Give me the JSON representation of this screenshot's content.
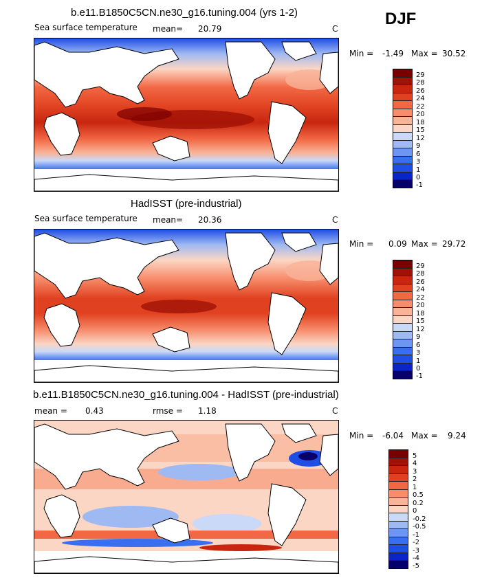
{
  "season": "DJF",
  "colors": {
    "sst_scale": [
      "#08006a",
      "#0c23c8",
      "#1f4ee6",
      "#3a6ef0",
      "#6d95f2",
      "#9fb9f3",
      "#c9d9f7",
      "#f2f2f2",
      "#fbd6c4",
      "#f9b398",
      "#f78d6c",
      "#f26844",
      "#e04221",
      "#c8260f",
      "#a01205",
      "#7a0000"
    ],
    "diff_scale": [
      "#08006a",
      "#0c23c8",
      "#1f4ee6",
      "#3a6ef0",
      "#6d95f2",
      "#9fb9f3",
      "#c9d9f7",
      "#f2f2f2",
      "#fbd6c4",
      "#f9b398",
      "#f78d6c",
      "#f26844",
      "#e04221",
      "#c8260f",
      "#a01205",
      "#7a0000"
    ]
  },
  "panels": [
    {
      "title": "b.e11.B1850C5CN.ne30_g16.tuning.004 (yrs 1-2)",
      "variable": "Sea surface temperature",
      "mean_label": "mean=",
      "mean_value": "20.79",
      "units": "C",
      "min_label": "Min =",
      "min_value": "-1.49",
      "max_label": "Max =",
      "max_value": "30.52",
      "colorbar_ticks": [
        "29",
        "28",
        "26",
        "24",
        "22",
        "20",
        "18",
        "15",
        "12",
        "9",
        "6",
        "3",
        "1",
        "0",
        "-1"
      ]
    },
    {
      "title": "HadISST (pre-industrial)",
      "variable": "Sea surface temperature",
      "mean_label": "mean=",
      "mean_value": "20.36",
      "units": "C",
      "min_label": "Min =",
      "min_value": "0.09",
      "max_label": "Max =",
      "max_value": "29.72",
      "colorbar_ticks": [
        "29",
        "28",
        "26",
        "24",
        "22",
        "20",
        "18",
        "15",
        "12",
        "9",
        "6",
        "3",
        "1",
        "0",
        "-1"
      ]
    },
    {
      "title": "b.e11.B1850C5CN.ne30_g16.tuning.004 - HadISST (pre-industrial)",
      "mean_label": "mean =",
      "mean_value": "0.43",
      "rmse_label": "rmse =",
      "rmse_value": "1.18",
      "units": "C",
      "min_label": "Min =",
      "min_value": "-6.04",
      "max_label": "Max =",
      "max_value": "9.24",
      "colorbar_ticks": [
        "5",
        "4",
        "3",
        "2",
        "1",
        "0.5",
        "0.2",
        "0",
        "-0.2",
        "-0.5",
        "-1",
        "-2",
        "-3",
        "-4",
        "-5"
      ]
    }
  ]
}
